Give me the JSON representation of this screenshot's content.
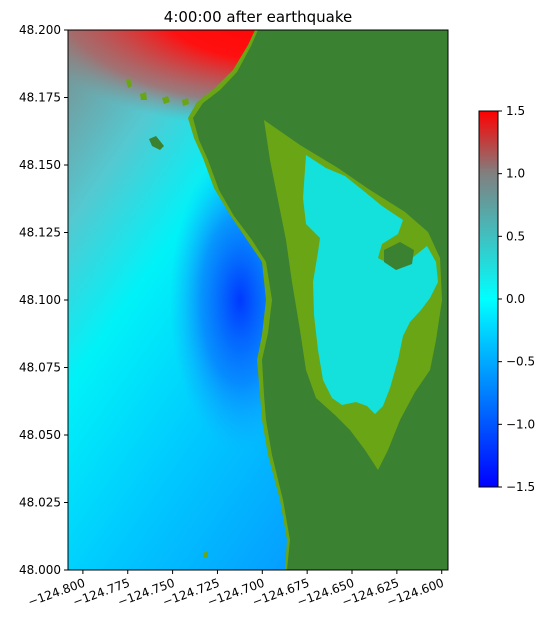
{
  "chart_data": {
    "type": "heatmap",
    "title": "4:00:00 after earthquake",
    "xlabel": "",
    "ylabel": "",
    "xlim": [
      -124.8083,
      -124.5965
    ],
    "ylim": [
      48.0,
      48.2
    ],
    "x_ticks": [
      -124.8,
      -124.775,
      -124.75,
      -124.725,
      -124.7,
      -124.675,
      -124.65,
      -124.625,
      -124.6
    ],
    "x_tick_labels": [
      "−124.800",
      "−124.775",
      "−124.750",
      "−124.725",
      "−124.700",
      "−124.675",
      "−124.650",
      "−124.625",
      "−124.600"
    ],
    "y_ticks": [
      48.0,
      48.025,
      48.05,
      48.075,
      48.1,
      48.125,
      48.15,
      48.175,
      48.2
    ],
    "y_tick_labels": [
      "48.000",
      "48.025",
      "48.050",
      "48.075",
      "48.100",
      "48.125",
      "48.150",
      "48.175",
      "48.200"
    ],
    "x_tick_rotation_deg": 20,
    "grid": false,
    "colorbar": {
      "vmin": -1.5,
      "vmax": 1.5,
      "ticks": [
        -1.5,
        -1.0,
        -0.5,
        0.0,
        0.5,
        1.0,
        1.5
      ],
      "tick_labels": [
        "−1.5",
        "−1.0",
        "−0.5",
        "0.0",
        "0.5",
        "1.0",
        "1.5"
      ],
      "stops": [
        {
          "value": -1.5,
          "color": "#0000ff"
        },
        {
          "value": 0.0,
          "color": "#00ffff"
        },
        {
          "value": 1.0,
          "color": "#808080"
        },
        {
          "value": 1.5,
          "color": "#ff0000"
        }
      ]
    },
    "land_color": "#3a8231",
    "shallow_color": "#6aa516",
    "inlet_value": 0.1
  }
}
